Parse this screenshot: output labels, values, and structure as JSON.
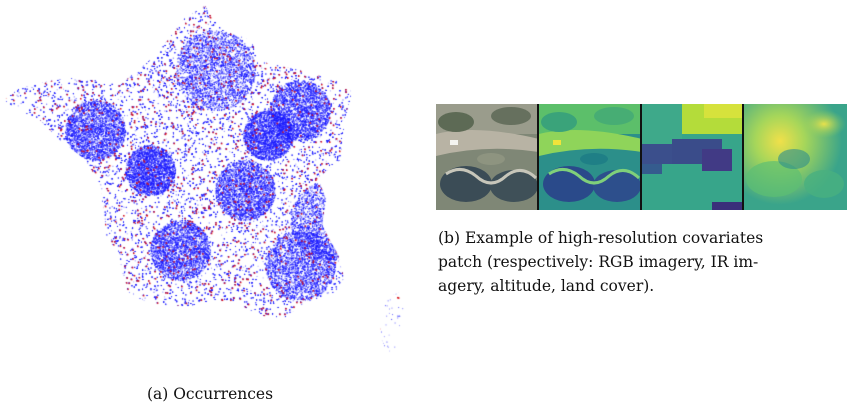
{
  "figure": {
    "panel_a": {
      "caption": "(a) Occurrences",
      "legend_colors": {
        "points_main": "#1a1aff",
        "points_secondary": "#e01010"
      }
    },
    "panel_b": {
      "tiles": [
        {
          "icon": "rgb-imagery-tile"
        },
        {
          "icon": "ir-imagery-tile"
        },
        {
          "icon": "altitude-tile"
        },
        {
          "icon": "land-cover-tile"
        }
      ],
      "caption_lines": [
        "(b) Example of high-resolution covariates",
        "patch (respectively: RGB imagery, IR im-",
        "agery, altitude, land cover)."
      ]
    }
  }
}
